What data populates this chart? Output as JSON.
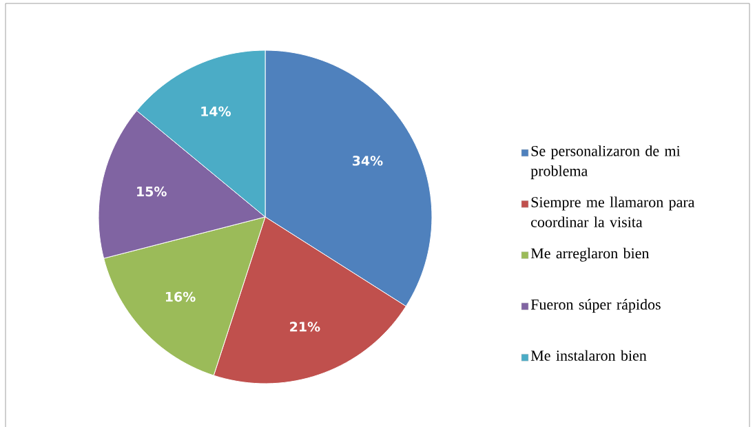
{
  "chart_data": {
    "type": "pie",
    "categories": [
      "Se personalizaron de mi problema",
      "Siempre me llamaron para coordinar la visita",
      "Me arreglaron bien",
      "Fueron súper rápidos",
      "Me instalaron bien"
    ],
    "values": [
      34,
      21,
      16,
      15,
      14
    ],
    "value_labels": [
      "34%",
      "21%",
      "16%",
      "15%",
      "14%"
    ],
    "colors": [
      "#4f81bd",
      "#c0504d",
      "#9bbb59",
      "#8064a2",
      "#4bacc6"
    ],
    "legend": "right"
  }
}
